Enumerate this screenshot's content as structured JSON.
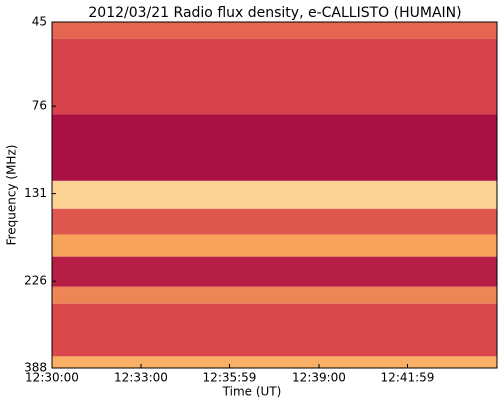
{
  "chart_data": {
    "type": "spectrogram",
    "title": "2012/03/21  Radio flux density, e-CALLISTO (HUMAIN)",
    "x_label": "Time (UT)",
    "y_label": "Frequency (MHz)",
    "xlim": [
      "12:30:00",
      "12:45:00"
    ],
    "xticks": [
      "12:30:00",
      "12:33:00",
      "12:35:59",
      "12:39:00",
      "12:41:59"
    ],
    "ylim": [
      45,
      388
    ],
    "yticks": [
      45,
      76,
      131,
      226,
      388
    ],
    "y_log": true,
    "y_inverted": true,
    "colormap": [
      "#9b0040",
      "#d9434b",
      "#f9a85a",
      "#fff5c0"
    ],
    "bands": [
      {
        "from": 45,
        "to": 50,
        "intensity": 0.45
      },
      {
        "from": 50,
        "to": 80,
        "intensity": 0.33
      },
      {
        "from": 80,
        "to": 121,
        "intensity": 0.08
      },
      {
        "from": 121,
        "to": 144,
        "intensity": 0.85
      },
      {
        "from": 144,
        "to": 169,
        "intensity": 0.4
      },
      {
        "from": 169,
        "to": 194,
        "intensity": 0.65
      },
      {
        "from": 194,
        "to": 234,
        "intensity": 0.15
      },
      {
        "from": 234,
        "to": 260,
        "intensity": 0.55
      },
      {
        "from": 260,
        "to": 361,
        "intensity": 0.35
      },
      {
        "from": 361,
        "to": 388,
        "intensity": 0.7
      }
    ]
  }
}
